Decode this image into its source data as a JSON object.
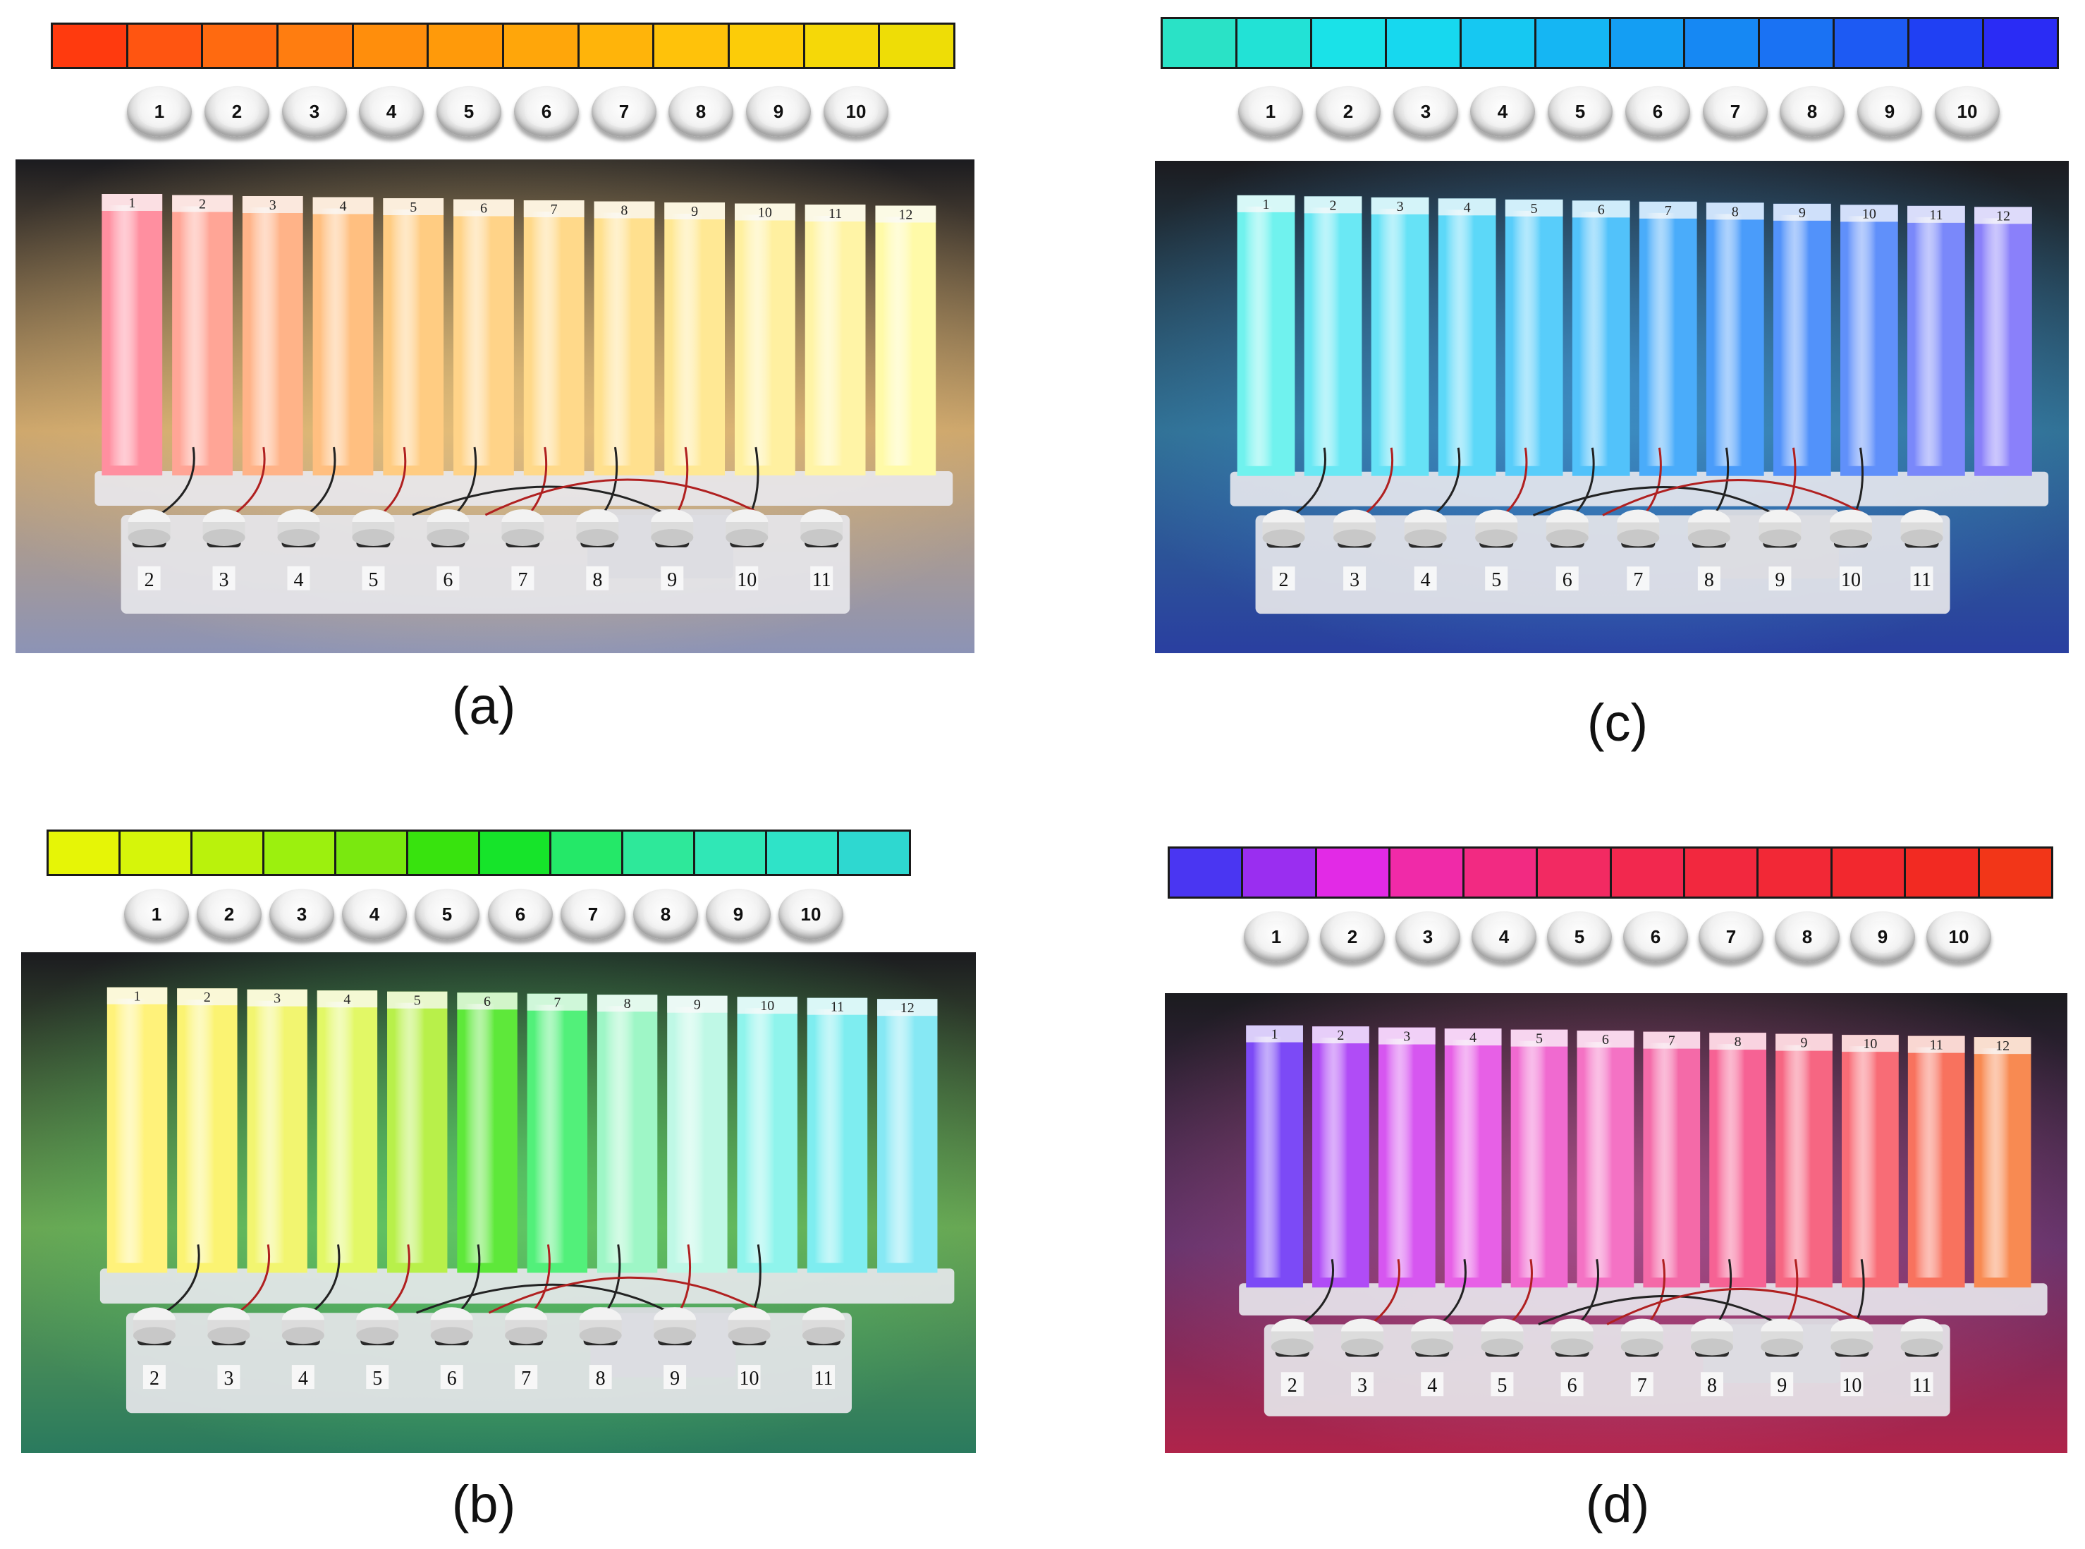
{
  "panels": [
    {
      "id": "a",
      "caption": "(a)",
      "swatches": [
        "#ff3a0e",
        "#ff5511",
        "#ff6a10",
        "#ff7d10",
        "#ff8e0c",
        "#ff9a0a",
        "#ffa60a",
        "#ffb40a",
        "#ffc20a",
        "#fccc08",
        "#f5d808",
        "#eedd06"
      ],
      "buttons": [
        "1",
        "2",
        "3",
        "4",
        "5",
        "6",
        "7",
        "8",
        "9",
        "10"
      ],
      "bar_labels": [
        "1",
        "2",
        "3",
        "4",
        "5",
        "6",
        "7",
        "8",
        "9",
        "10",
        "11",
        "12"
      ],
      "bar_colors": [
        "#ff8fa0",
        "#ffa596",
        "#ffb388",
        "#ffbf80",
        "#ffcc82",
        "#ffd388",
        "#ffd98a",
        "#ffe08e",
        "#ffe894",
        "#fff0a0",
        "#fff4a6",
        "#fffaa8"
      ],
      "board_labels": [
        "2",
        "3",
        "4",
        "5",
        "6",
        "7",
        "8",
        "9",
        "10",
        "11"
      ],
      "ambient": "#caa36a",
      "floor": "#8c93b6"
    },
    {
      "id": "b",
      "caption": "(b)",
      "swatches": [
        "#e6f506",
        "#d6f50a",
        "#baf20c",
        "#9cf00e",
        "#7ae80f",
        "#38e30e",
        "#16e42a",
        "#24e868",
        "#2ee89a",
        "#30e7b6",
        "#2fe3c8",
        "#2ed8d0"
      ],
      "buttons": [
        "1",
        "2",
        "3",
        "4",
        "5",
        "6",
        "7",
        "8",
        "9",
        "10"
      ],
      "bar_labels": [
        "1",
        "2",
        "3",
        "4",
        "5",
        "6",
        "7",
        "8",
        "9",
        "10",
        "11",
        "12"
      ],
      "bar_colors": [
        "#fff27a",
        "#fbf372",
        "#f2f570",
        "#e2f866",
        "#b8f04a",
        "#5ee83a",
        "#52f07a",
        "#9ef6c6",
        "#bff8e6",
        "#8ff4ec",
        "#7eedf0",
        "#86e8f4"
      ],
      "board_labels": [
        "2",
        "3",
        "4",
        "5",
        "6",
        "7",
        "8",
        "9",
        "10",
        "11"
      ],
      "ambient": "#6aa050",
      "floor": "#2a7a5e"
    },
    {
      "id": "c",
      "caption": "(c)",
      "swatches": [
        "#2ae2c6",
        "#22e2d6",
        "#1ae2e8",
        "#17d8ef",
        "#16c8f2",
        "#15b6f3",
        "#149ef3",
        "#1688f3",
        "#1a72f3",
        "#1d5af3",
        "#2040f3",
        "#2a2cf5"
      ],
      "buttons": [
        "1",
        "2",
        "3",
        "4",
        "5",
        "6",
        "7",
        "8",
        "9",
        "10"
      ],
      "bar_labels": [
        "1",
        "2",
        "3",
        "4",
        "5",
        "6",
        "7",
        "8",
        "9",
        "10",
        "11",
        "12"
      ],
      "bar_colors": [
        "#70f2ee",
        "#6ae8f4",
        "#66e2f6",
        "#5cd8f8",
        "#58cdfa",
        "#52c2fa",
        "#4aacfa",
        "#4a9cfa",
        "#5292fa",
        "#6090fa",
        "#7a88fa",
        "#8a80fa"
      ],
      "board_labels": [
        "2",
        "3",
        "4",
        "5",
        "6",
        "7",
        "8",
        "9",
        "10",
        "11"
      ],
      "ambient": "#2f6d8e",
      "floor": "#2a3fa0"
    },
    {
      "id": "d",
      "caption": "(d)",
      "swatches": [
        "#4a36f2",
        "#9a2ef0",
        "#e22ae6",
        "#f02aa8",
        "#f22a82",
        "#f22a62",
        "#f2284e",
        "#f2283e",
        "#f22836",
        "#f2282e",
        "#f22a22",
        "#f23618"
      ],
      "buttons": [
        "1",
        "2",
        "3",
        "4",
        "5",
        "6",
        "7",
        "8",
        "9",
        "10"
      ],
      "bar_labels": [
        "1",
        "2",
        "3",
        "4",
        "5",
        "6",
        "7",
        "8",
        "9",
        "10",
        "11",
        "12"
      ],
      "bar_colors": [
        "#7c4af6",
        "#b04cf6",
        "#d656f0",
        "#e760e6",
        "#f06ad0",
        "#f472c4",
        "#f46aa8",
        "#f66294",
        "#f66682",
        "#f86c76",
        "#f8725e",
        "#f88a52"
      ],
      "board_labels": [
        "2",
        "3",
        "4",
        "5",
        "6",
        "7",
        "8",
        "9",
        "10",
        "11"
      ],
      "ambient": "#5c3068",
      "floor": "#b0244a"
    }
  ]
}
